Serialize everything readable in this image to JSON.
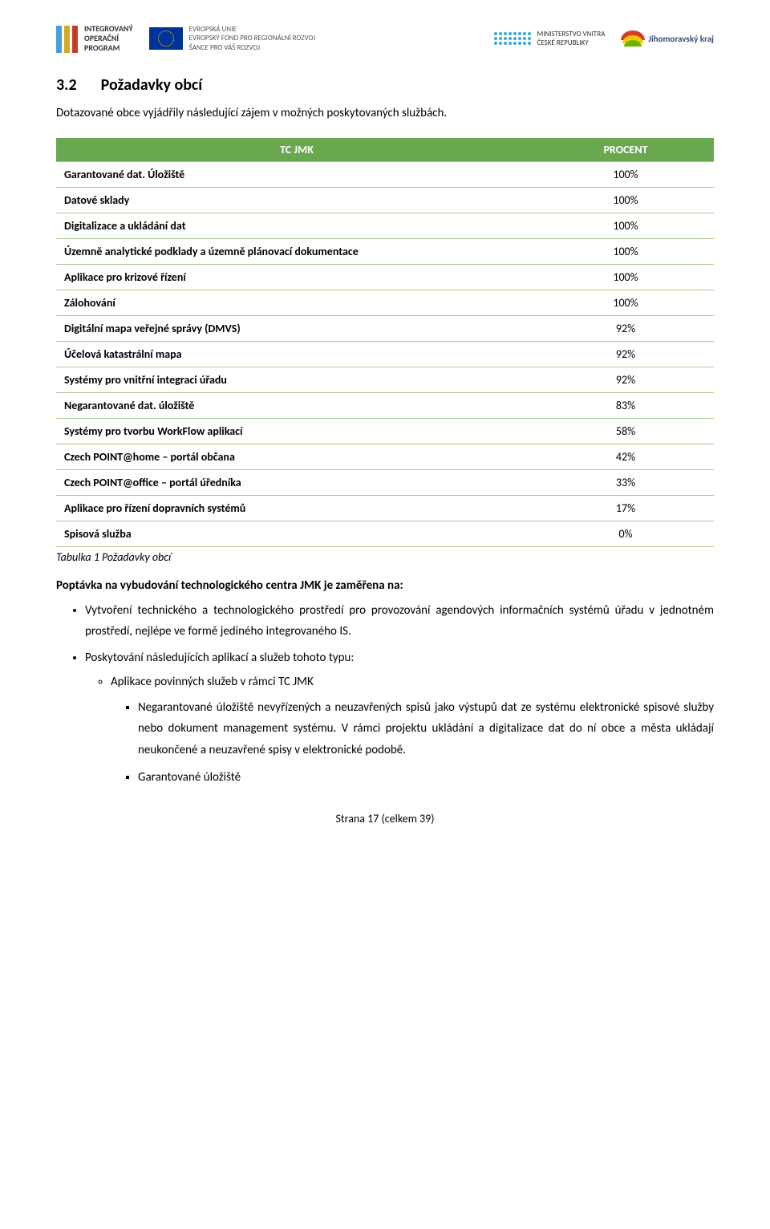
{
  "header": {
    "iop": {
      "line1": "INTEGROVANÝ",
      "line2": "OPERAČNÍ",
      "line3": "PROGRAM",
      "bar_colors": [
        "#48a0d8",
        "#d7a81e",
        "#c73a2b"
      ]
    },
    "eu": {
      "line1": "EVROPSKÁ UNIE",
      "line2": "EVROPSKÝ FOND PRO REGIONÁLNÍ ROZVOJ",
      "line3": "ŠANCE PRO VÁŠ ROZVOJ"
    },
    "mvcr": {
      "line1": "MINISTERSTVO VNITRA",
      "line2": "ČESKÉ REPUBLIKY"
    },
    "jmk": "Jihomoravský kraj"
  },
  "section": {
    "num": "3.2",
    "title": "Požadavky obcí"
  },
  "intro": "Dotazované obce vyjádřily následující zájem v  možných poskytovaných službách.",
  "table": {
    "headers": [
      "TC JMK",
      "PROCENT"
    ],
    "rows": [
      {
        "label": "Garantované dat. Úložiště",
        "val": "100%"
      },
      {
        "label": "Datové sklady",
        "val": "100%"
      },
      {
        "label": "Digitalizace a ukládání dat",
        "val": "100%"
      },
      {
        "label": "Územně analytické podklady a územně plánovací dokumentace",
        "val": "100%"
      },
      {
        "label": "Aplikace pro krizové řízení",
        "val": "100%"
      },
      {
        "label": "Zálohování",
        "val": "100%"
      },
      {
        "label": "Digitální mapa veřejné správy (DMVS)",
        "val": "92%"
      },
      {
        "label": "Účelová katastrální mapa",
        "val": "92%"
      },
      {
        "label": "Systémy pro vnitřní integraci úřadu",
        "val": "92%"
      },
      {
        "label": "Negarantované dat. úložiště",
        "val": "83%"
      },
      {
        "label": "Systémy pro tvorbu WorkFlow aplikací",
        "val": "58%"
      },
      {
        "label": "Czech POINT@home – portál občana",
        "val": "42%"
      },
      {
        "label": "Czech POINT@office – portál úředníka",
        "val": "33%"
      },
      {
        "label": "Aplikace pro řízení dopravních systémů",
        "val": "17%"
      },
      {
        "label": "Spisová služba",
        "val": "0%"
      }
    ],
    "caption": "Tabulka 1 Požadavky obcí",
    "header_bg": "#6aa84f",
    "header_fg": "#ffffff",
    "row_border": "#a8c78e"
  },
  "demand_title": "Poptávka na vybudování technologického centra JMK je zaměřena na:",
  "bullets": [
    "Vytvoření technického a technologického prostředí pro provozování agendových informačních systémů úřadu v jednotném prostředí, nejlépe ve formě jediného integrovaného IS.",
    "Poskytování následujících aplikací a služeb tohoto typu:"
  ],
  "sub_circle": "Aplikace povinných služeb v rámci TC JMK",
  "sub_squares": [
    "Negarantované úložiště nevyřízených a neuzavřených spisů jako výstupů dat ze systému elektronické spisové služby nebo dokument management systému. V rámci projektu ukládání a digitalizace dat do ní obce a města ukládají neukončené a neuzavřené spisy v elektronické podobě.",
    "Garantované úložiště"
  ],
  "footer": "Strana 17 (celkem 39)"
}
